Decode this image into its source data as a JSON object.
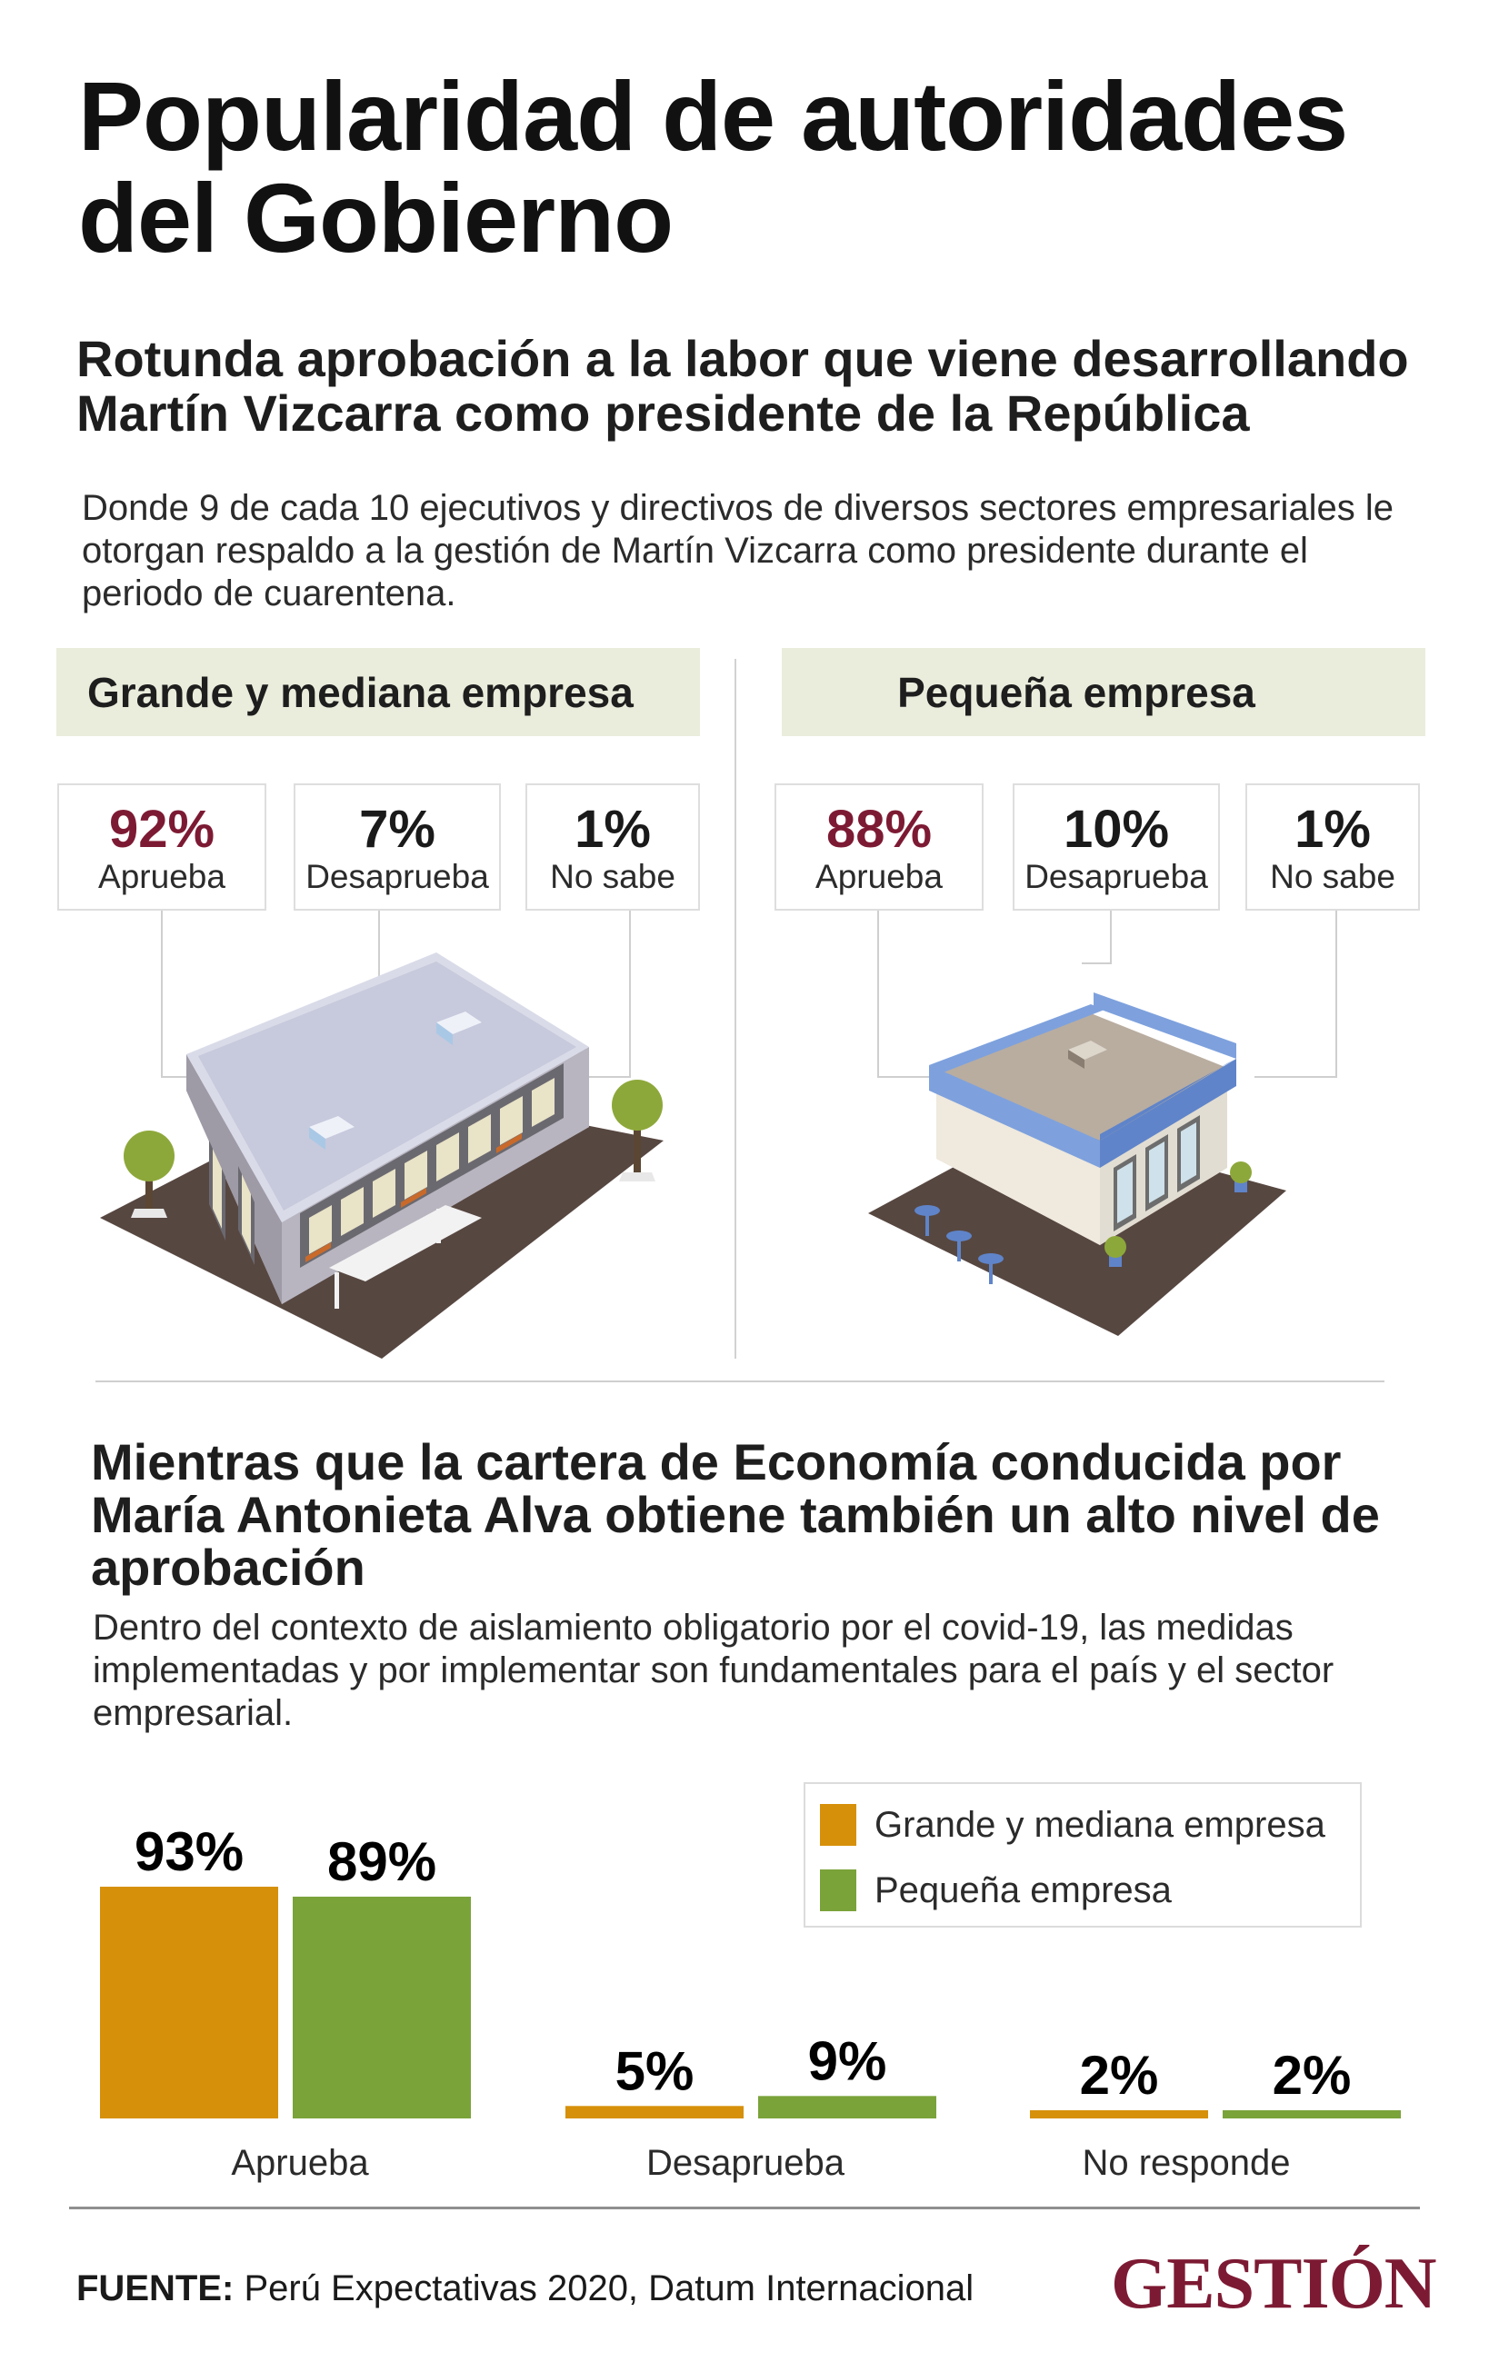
{
  "title": "Popularidad de autoridades del Gobierno",
  "section1": {
    "heading": "Rotunda aprobación a la labor que viene desarrollando Martín Vizcarra como presidente de la República",
    "text": "Donde 9 de cada 10 ejecutivos y directivos de diversos sectores empresariales le otorgan respaldo a la gestión de Martín Vizcarra como presidente durante el periodo de cuarentena.",
    "segments": [
      {
        "name": "Grande y mediana empresa",
        "stats": [
          {
            "value": "92%",
            "label": "Aprueba"
          },
          {
            "value": "7%",
            "label": "Desaprueba"
          },
          {
            "value": "1%",
            "label": "No sabe"
          }
        ]
      },
      {
        "name": "Pequeña empresa",
        "stats": [
          {
            "value": "88%",
            "label": "Aprueba"
          },
          {
            "value": "10%",
            "label": "Desaprueba"
          },
          {
            "value": "1%",
            "label": "No sabe"
          }
        ]
      }
    ]
  },
  "section2": {
    "heading": "Mientras que la cartera de Economía conducida por María Antonieta Alva obtiene también un alto nivel de aprobación",
    "text": "Dentro del contexto de aislamiento obligatorio por el covid-19, las medidas implementadas y por implementar son fundamentales para el país y el sector empresarial."
  },
  "colors": {
    "approve_accent": "#7d1a33",
    "segment_header_bg": "#eaeddc",
    "grande": "#d6900a",
    "pequena": "#7aa33a"
  },
  "chart_data": {
    "type": "bar",
    "categories": [
      "Aprueba",
      "Desaprueba",
      "No responde"
    ],
    "series": [
      {
        "name": "Grande y mediana empresa",
        "values": [
          93,
          5,
          2
        ],
        "labels": [
          "93%",
          "5%",
          "2%"
        ],
        "color": "#d6900a"
      },
      {
        "name": "Pequeña empresa",
        "values": [
          89,
          9,
          2
        ],
        "labels": [
          "89%",
          "9%",
          "2%"
        ],
        "color": "#7aa33a"
      }
    ],
    "ylim": [
      0,
      100
    ],
    "unit": "%",
    "legend_position": "top-right",
    "grid": false
  },
  "footer": {
    "source_label": "FUENTE:",
    "source_text": "Perú Expectativas 2020, Datum Internacional",
    "brand": "GESTIÓN"
  }
}
